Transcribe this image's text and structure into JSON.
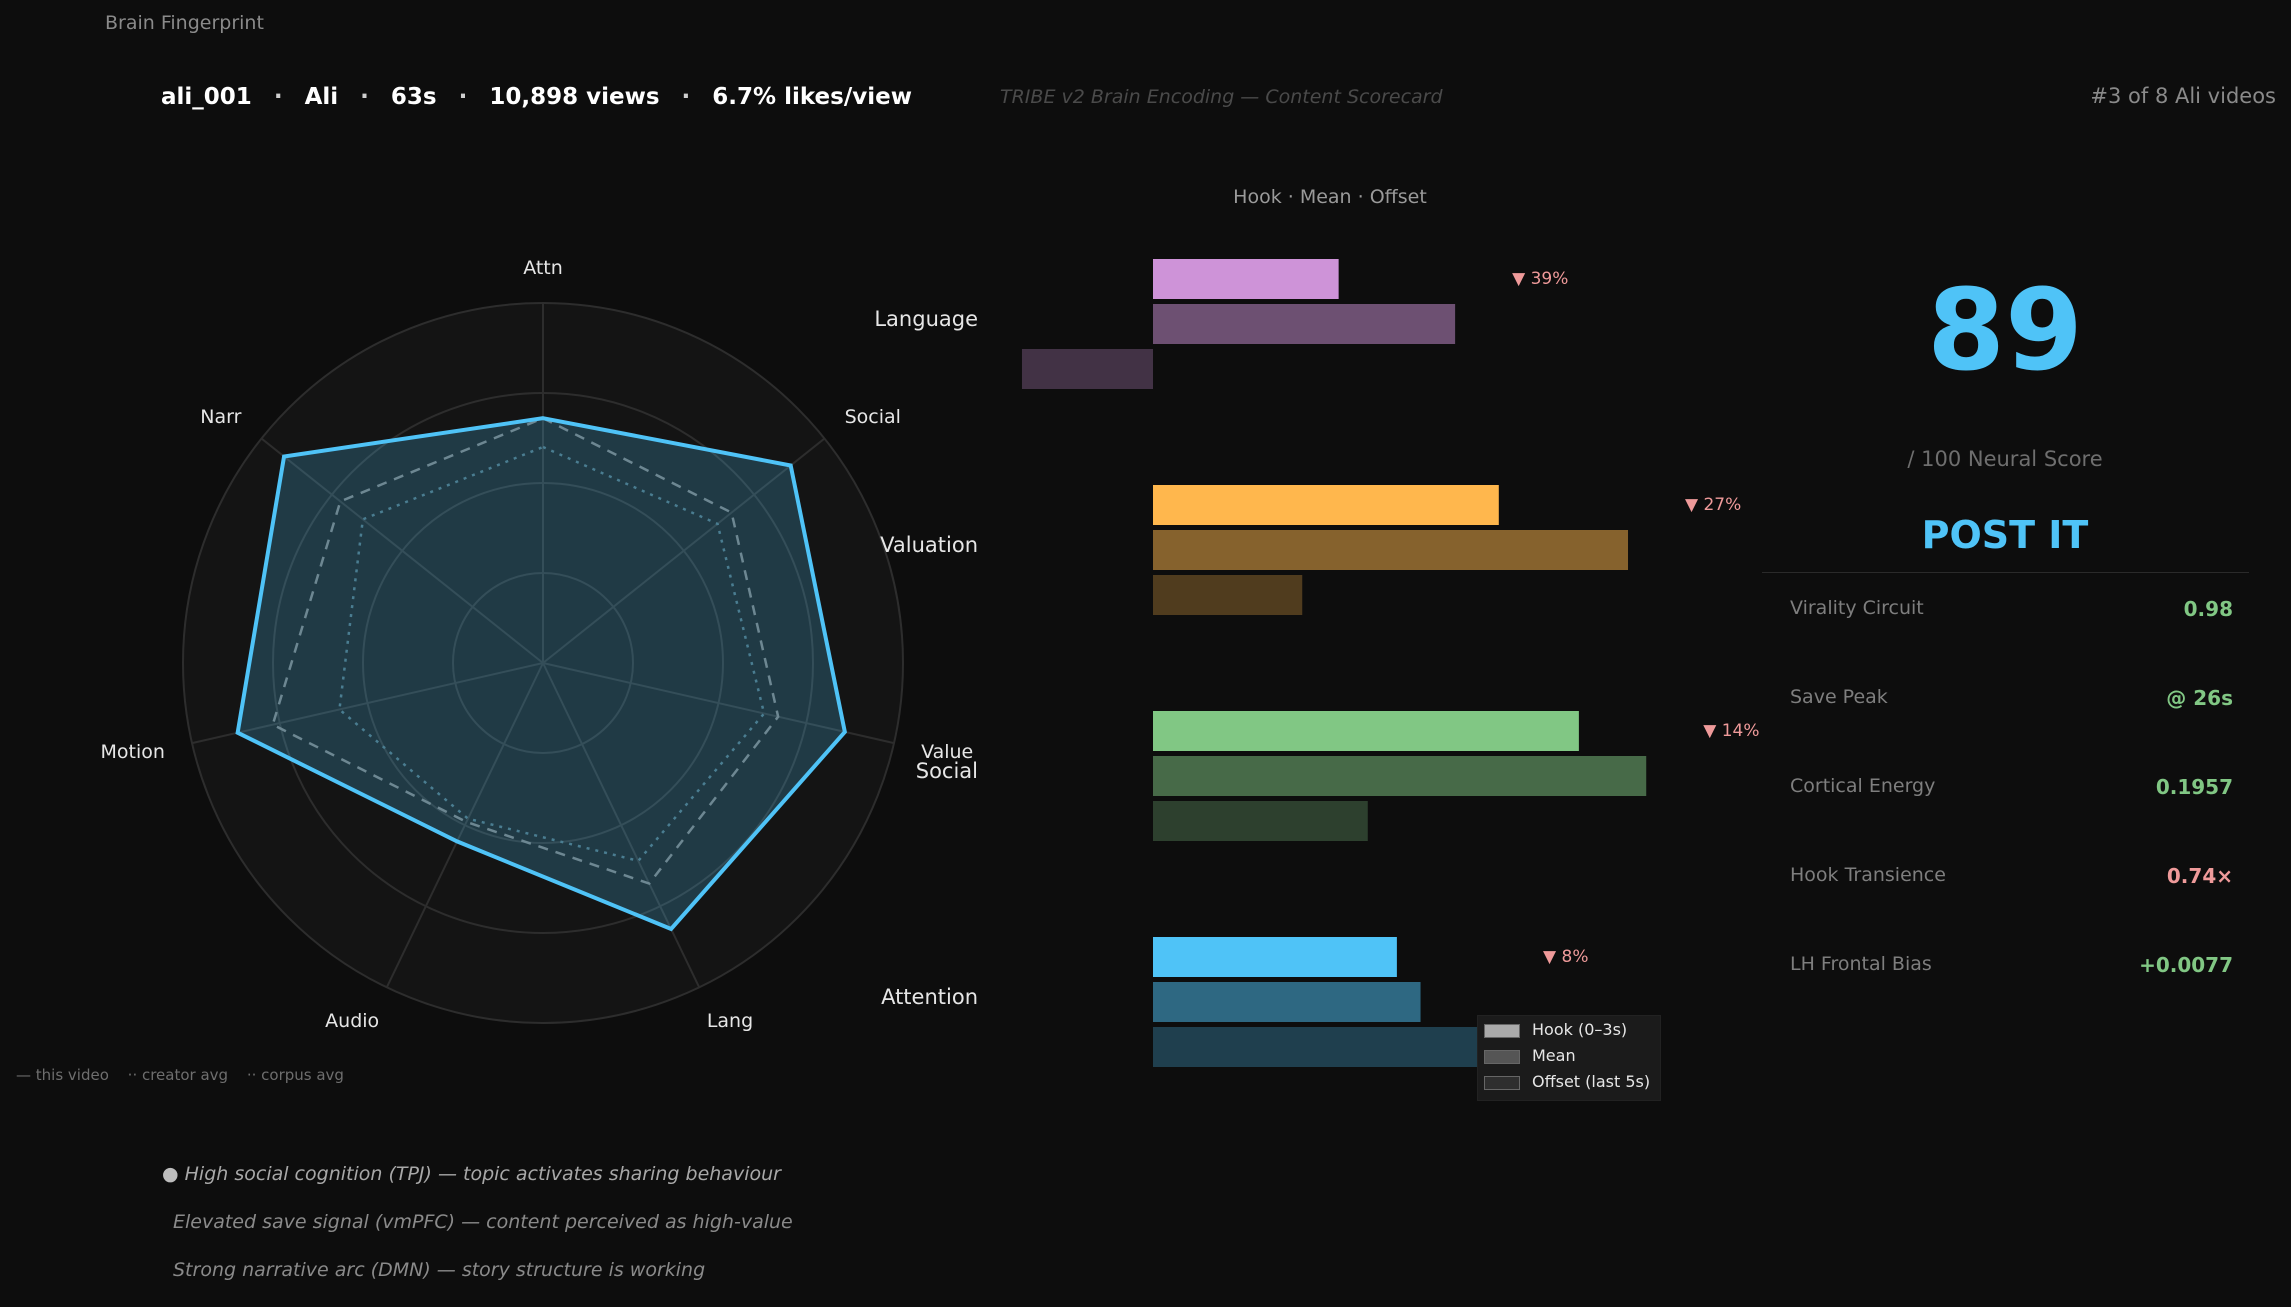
{
  "app_title": "Brain Fingerprint",
  "header": {
    "video_id": "ali_001",
    "creator": "Ali",
    "duration": "63s",
    "views": "10,898 views",
    "likes_rate": "6.7% likes/view",
    "subtitle": "TRIBE v2 Brain Encoding — Content Scorecard",
    "rank": "#3 of 8  Ali videos"
  },
  "score": {
    "value": "89",
    "label": "/ 100  Neural Score",
    "verdict": "POST IT",
    "color": "#4fc3f7"
  },
  "metrics": [
    {
      "label": "Virality Circuit",
      "value": "0.98",
      "color": "#81c784"
    },
    {
      "label": "Save Peak",
      "value": "@ 26s",
      "color": "#81c784"
    },
    {
      "label": "Cortical Energy",
      "value": "0.1957",
      "color": "#81c784"
    },
    {
      "label": "Hook Transience",
      "value": "0.74×",
      "color": "#ef9a9a"
    },
    {
      "label": "LH Frontal Bias",
      "value": "+0.0077",
      "color": "#81c784"
    }
  ],
  "insights": {
    "bullet": "●",
    "items": [
      "High social cognition (TPJ) — topic activates sharing behaviour",
      "Elevated save signal (vmPFC) — content perceived as high-value",
      "Strong narrative arc (DMN) — story structure is working"
    ]
  },
  "radar_legend": [
    "— this video",
    "·· creator avg",
    "·· corpus avg"
  ],
  "bars_legend": [
    {
      "label": "Hook (0–3s)",
      "color": "#aaaaaa"
    },
    {
      "label": "Mean",
      "color": "#555555"
    },
    {
      "label": "Offset (last 5s)",
      "color": "#2e2e2e"
    }
  ],
  "chart_data": [
    {
      "type": "radar",
      "axes": [
        "Attn",
        "Social",
        "Value",
        "Lang",
        "Audio",
        "Motion",
        "Narr"
      ],
      "rmax": 1.0,
      "rings": [
        0.25,
        0.5,
        0.75,
        1.0
      ],
      "grid": true,
      "series": [
        {
          "name": "this video",
          "values": [
            0.68,
            0.88,
            0.86,
            0.82,
            0.55,
            0.87,
            0.92
          ],
          "color": "#4fc3f7",
          "style": "solid",
          "fill": true
        },
        {
          "name": "creator avg",
          "values": [
            0.68,
            0.67,
            0.67,
            0.68,
            0.49,
            0.77,
            0.72
          ],
          "color": "#777777",
          "style": "dashed"
        },
        {
          "name": "corpus avg",
          "values": [
            0.6,
            0.62,
            0.63,
            0.61,
            0.48,
            0.58,
            0.64
          ],
          "color": "#4a6a75",
          "style": "dotted"
        }
      ]
    },
    {
      "type": "bar",
      "orientation": "horizontal",
      "title": "Hook  ·  Mean  ·  Offset",
      "xlim": [
        -0.07,
        0.36
      ],
      "categories": [
        "Language",
        "Valuation",
        "Social",
        "Attention"
      ],
      "hook_change": [
        "▼ 39%",
        "▼ 27%",
        "▼ 14%",
        "▼ 8%"
      ],
      "change_color": "#ef9a9a",
      "colors": [
        "#ce93d8",
        "#ffb74d",
        "#81c784",
        "#4fc3f7"
      ],
      "series": [
        {
          "name": "Hook (0–3s)",
          "values": [
            0.102,
            0.19,
            0.234,
            0.134
          ]
        },
        {
          "name": "Mean",
          "values": [
            0.166,
            0.261,
            0.271,
            0.147
          ]
        },
        {
          "name": "Offset (last 5s)",
          "values": [
            -0.072,
            0.082,
            0.118,
            0.183
          ]
        }
      ]
    }
  ]
}
